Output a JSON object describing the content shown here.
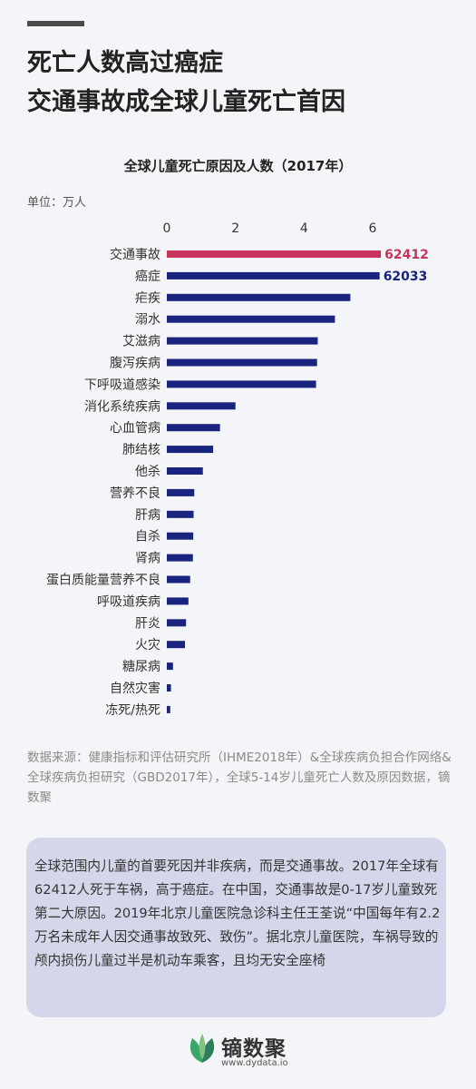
{
  "header": {
    "line1": "死亡人数高过癌症",
    "line2": "交通事故成全球儿童死亡首因"
  },
  "unit_label": "单位：万人",
  "chart_data": {
    "type": "bar",
    "orientation": "horizontal",
    "title": "全球儿童死亡原因及人数（2017年）",
    "unit": "万人",
    "xlim": [
      0,
      6
    ],
    "xticks": [
      0,
      2,
      4,
      6
    ],
    "highlight_color": "#c8335e",
    "bar_color": "#1a237e",
    "categories": [
      "交通事故",
      "癌症",
      "疟疾",
      "溺水",
      "艾滋病",
      "腹泻疾病",
      "下呼吸道感染",
      "消化系统疾病",
      "心血管病",
      "肺结核",
      "他杀",
      "营养不良",
      "肝病",
      "自杀",
      "肾病",
      "蛋白质能量营养不良",
      "呼吸道疾病",
      "肝炎",
      "火灾",
      "糖尿病",
      "自然灾害",
      "冻死/热死"
    ],
    "values": [
      6.2412,
      6.2033,
      5.35,
      4.9,
      4.4,
      4.38,
      4.35,
      2.0,
      1.55,
      1.35,
      1.05,
      0.8,
      0.78,
      0.77,
      0.76,
      0.68,
      0.63,
      0.56,
      0.53,
      0.18,
      0.12,
      0.1
    ],
    "data_labels": [
      {
        "category": "交通事故",
        "text": "62412"
      },
      {
        "category": "癌症",
        "text": "62033"
      }
    ]
  },
  "source": "数据来源：健康指标和评估研究所（IHME2018年）&全球疾病负担合作网络&全球疾病负担研究（GBD2017年），全球5-14岁儿童死亡人数及原因数据，镝数聚",
  "note": "全球范围内儿童的首要死因并非疾病，而是交通事故。2017年全球有62412人死于车祸，高于癌症。在中国，交通事故是0-17岁儿童致死第二大原因。2019年北京儿童医院急诊科主任王荃说“中国每年有2.2万名未成年人因交通事故致死、致伤”。据北京儿童医院，车祸导致的颅内损伤儿童过半是机动车乘客，且均无安全座椅",
  "logo": {
    "name": "镝数聚",
    "url": "www.dydata.io",
    "colors": [
      "#3aa66a",
      "#2e7d5b",
      "#7cc47f"
    ]
  }
}
